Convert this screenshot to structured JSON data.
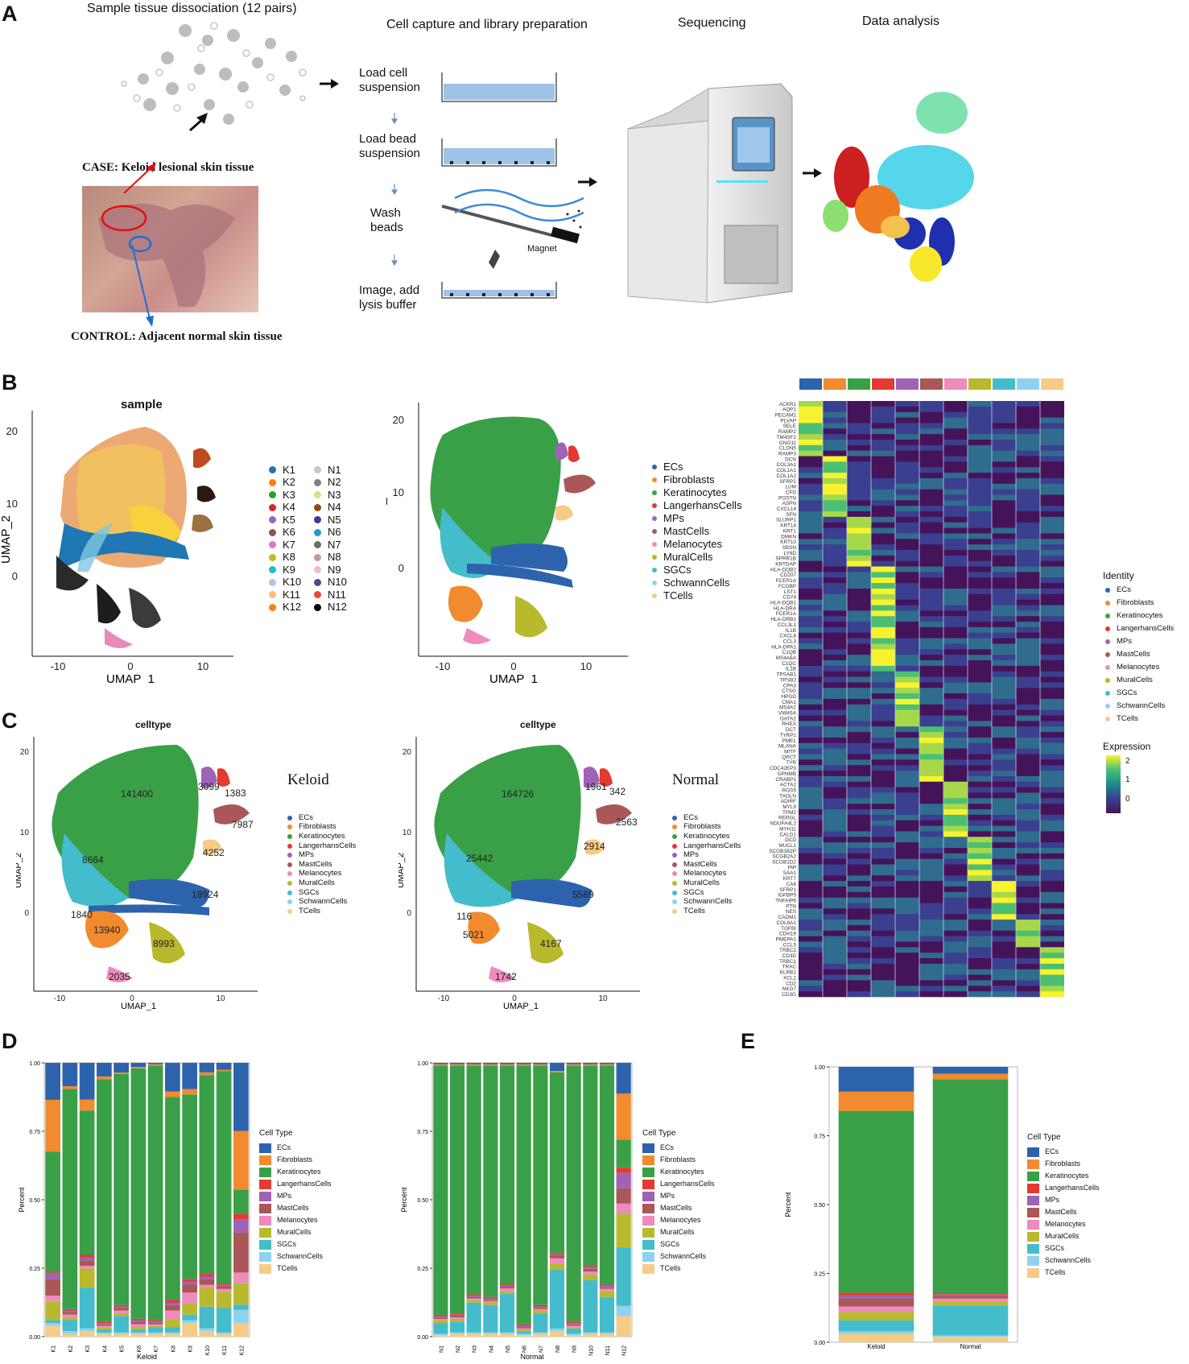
{
  "panels": {
    "a": "A",
    "b": "B",
    "c": "C",
    "d": "D",
    "e": "E"
  },
  "panel_a": {
    "step1_title": "Sample tissue dissociation (12 pairs)",
    "step2_title": "Cell capture and library preparation",
    "step3_title": "Sequencing",
    "step4_title": "Data analysis",
    "case_label": "CASE: Keloid lesional skin tissue",
    "control_label": "CONTROL: Adjacent normal skin tissue",
    "prep_steps": [
      "Load  cell suspension",
      "Load bead suspension",
      "Wash beads",
      "Image, add lysis buffer"
    ],
    "magnet_label": "Magnet"
  },
  "panel_b": {
    "plot1_title": "sample",
    "xlabel": "UMAP_1",
    "ylabel": "UMAP_2",
    "x_ticks": [
      "-10",
      "0",
      "10"
    ],
    "y_ticks": [
      "20",
      "10",
      "0"
    ],
    "sample_legend_col1": [
      "K1",
      "K2",
      "K3",
      "K4",
      "K5",
      "K6",
      "K7",
      "K8",
      "K9",
      "K10",
      "K11",
      "K12"
    ],
    "sample_legend_col2": [
      "N1",
      "N2",
      "N3",
      "N4",
      "N5",
      "N6",
      "N7",
      "N8",
      "N9",
      "N10",
      "N11",
      "N12"
    ],
    "sample_colors_k": [
      "#1f77b4",
      "#ff7f0e",
      "#2ca02c",
      "#d62728",
      "#9467bd",
      "#8c564b",
      "#e377c2",
      "#bcbd22",
      "#17becf",
      "#aec7e8",
      "#ffbb78",
      "#ff7f0e"
    ],
    "sample_colors_n": [
      "#c7c7c7",
      "#7f7f7f",
      "#dbdb8d",
      "#8c510a",
      "#3b3b9c",
      "#1f9bcf",
      "#6a6a6a",
      "#c49c94",
      "#f7b6d2",
      "#4c4c8c",
      "#e84c2c",
      "#000000"
    ],
    "celltype_legend": [
      "ECs",
      "Fibroblasts",
      "Keratinocytes",
      "LangerhansCells",
      "MPs",
      "MastCells",
      "Melanocytes",
      "MuralCells",
      "SGCs",
      "SchwannCells",
      "TCells"
    ],
    "heatmap_genes": [
      "ACKR1",
      "AQP1",
      "PECAM1",
      "PLVAP",
      "SELE",
      "RAMP2",
      "TM4SF1",
      "GNG11",
      "CLDN5",
      "RAMP3",
      "DCN",
      "COL3A1",
      "COL1A1",
      "COL1A2",
      "SFRP2",
      "LUM",
      "CFD",
      "POSTN",
      "ASPN",
      "CXCL14",
      "SFN",
      "SLURP1",
      "KRT14",
      "KRT1",
      "DMKN",
      "KRT10",
      "SBSN",
      "LY6D",
      "SPRR1B",
      "KRTDAP",
      "HLA-DQB2",
      "CD207",
      "FCER1A",
      "FCGBP",
      "LST1",
      "CD74",
      "HLA-DQB1",
      "HLA-DRA",
      "FCER1A",
      "HLA-DRB1",
      "CCL3L1",
      "IL1B",
      "CXCL8",
      "CCL3",
      "HLA-DPA1",
      "C1QB",
      "MS4A6A",
      "C1QC",
      "IL1B",
      "TPSAB1",
      "TPSB2",
      "CPA3",
      "CTSG",
      "HPGD",
      "CMA1",
      "MS4A2",
      "VWA5A",
      "GATA2",
      "RHEX",
      "DCT",
      "TYRP1",
      "PMEL",
      "MLANA",
      "MITF",
      "QPCT",
      "TYR",
      "CDC42EP3",
      "GPNMB",
      "CRABP1",
      "ACTA2",
      "RGS5",
      "TAGLN",
      "ADIRF",
      "MYL9",
      "TPM2",
      "RERGL",
      "NDUFA4L2",
      "MYH11",
      "CALD1",
      "DCD",
      "MUCL1",
      "SCGB1B2P",
      "SCGB2A2",
      "SCGB1D2",
      "PIP",
      "SAA1",
      "KRT7",
      "CA6",
      "SFRP1",
      "IGFBP5",
      "TNFAIP6",
      "PTN",
      "NES",
      "CADM1",
      "COL8A1",
      "TGFBI",
      "CDH19",
      "PMEPA1",
      "CCL5",
      "TRBC2",
      "CD3D",
      "TRBC1",
      "TRAC",
      "KLRB1",
      "XCL1",
      "CD2",
      "NKG7",
      "CD3G"
    ],
    "identity_title": "Identity",
    "expression_title": "Expression",
    "expression_ticks": [
      "2",
      "1",
      "0"
    ]
  },
  "panel_c": {
    "title": "celltype",
    "keloid_label": "Keloid",
    "normal_label": "Normal",
    "xlabel": "UMAP_1",
    "ylabel": "UMAP_2",
    "x_ticks": [
      "-10",
      "0",
      "10"
    ],
    "y_ticks": [
      "20",
      "10",
      "0"
    ],
    "keloid_counts": {
      "Keratinocytes": "141400",
      "MPs": "3099",
      "LangerhansCells": "1383",
      "MastCells": "7987",
      "MuralCells_tail": "4252",
      "SGCs": "8664",
      "ECs": "18924",
      "SchwannCells": "1840",
      "Fibroblasts": "13940",
      "MuralCells": "8993",
      "Melanocytes": "2035"
    },
    "normal_counts": {
      "Keratinocytes": "164726",
      "MPs": "1961",
      "LangerhansCells": "342",
      "MastCells": "2563",
      "MuralCells_tail": "2914",
      "SGCs": "25442",
      "ECs": "5589",
      "SchwannCells": "116",
      "Fibroblasts": "5021",
      "MuralCells": "4167",
      "Melanocytes": "1742"
    }
  },
  "chart_data": [
    {
      "type": "bar",
      "title": "Keloid",
      "xlabel": "Keloid",
      "ylabel": "Percent",
      "ylim": [
        0,
        1
      ],
      "y_ticks": [
        "1.00",
        "0.75",
        "0.50",
        "0.25",
        "0.00"
      ],
      "legend_title": "Cell Type",
      "categories": [
        "K1",
        "K2",
        "K3",
        "K4",
        "K5",
        "K6",
        "K7",
        "K8",
        "K9",
        "K10",
        "K11",
        "K12"
      ],
      "series": [
        {
          "name": "TCells",
          "values": [
            0.04,
            0.01,
            0.02,
            0.01,
            0.01,
            0.01,
            0.01,
            0.01,
            0.05,
            0.02,
            0.01,
            0.05
          ]
        },
        {
          "name": "SchwannCells",
          "values": [
            0.01,
            0.01,
            0.01,
            0.005,
            0.005,
            0.005,
            0.005,
            0.005,
            0.01,
            0.01,
            0.005,
            0.05
          ]
        },
        {
          "name": "SGCs",
          "values": [
            0.01,
            0.04,
            0.15,
            0.01,
            0.06,
            0.01,
            0.02,
            0.02,
            0.02,
            0.08,
            0.09,
            0.02
          ]
        },
        {
          "name": "MuralCells",
          "values": [
            0.07,
            0.01,
            0.07,
            0.01,
            0.01,
            0.01,
            0.005,
            0.03,
            0.04,
            0.07,
            0.06,
            0.08
          ]
        },
        {
          "name": "Melanocytes",
          "values": [
            0.02,
            0.01,
            0.01,
            0.005,
            0.01,
            0.01,
            0.005,
            0.03,
            0.04,
            0.01,
            0.01,
            0.04
          ]
        },
        {
          "name": "MastCells",
          "values": [
            0.06,
            0.01,
            0.02,
            0.005,
            0.01,
            0.01,
            0.005,
            0.02,
            0.03,
            0.02,
            0.01,
            0.15
          ]
        },
        {
          "name": "MPs",
          "values": [
            0.02,
            0.005,
            0.01,
            0.005,
            0.005,
            0.005,
            0.005,
            0.01,
            0.01,
            0.01,
            0.005,
            0.05
          ]
        },
        {
          "name": "LangerhansCells",
          "values": [
            0.005,
            0.005,
            0.01,
            0.005,
            0.005,
            0.005,
            0.005,
            0.01,
            0.01,
            0.01,
            0.005,
            0.02
          ]
        },
        {
          "name": "Keratinocytes",
          "values": [
            0.44,
            0.8,
            0.53,
            0.89,
            0.84,
            0.91,
            0.93,
            0.74,
            0.67,
            0.73,
            0.78,
            0.09
          ]
        },
        {
          "name": "Fibroblasts",
          "values": [
            0.19,
            0.01,
            0.04,
            0.01,
            0.005,
            0.005,
            0.005,
            0.02,
            0.02,
            0.01,
            0.005,
            0.22
          ]
        },
        {
          "name": "ECs",
          "values": [
            0.135,
            0.085,
            0.135,
            0.05,
            0.035,
            0.015,
            0.005,
            0.105,
            0.095,
            0.035,
            0.025,
            0.255
          ]
        }
      ]
    },
    {
      "type": "bar",
      "title": "Normal",
      "xlabel": "Normal",
      "ylabel": "Percent",
      "ylim": [
        0,
        1
      ],
      "y_ticks": [
        "1.00",
        "0.75",
        "0.50",
        "0.25",
        "0.00"
      ],
      "legend_title": "Cell Type",
      "categories": [
        "N1",
        "N2",
        "N3",
        "N4",
        "N5",
        "N6",
        "N7",
        "N8",
        "N9",
        "N10",
        "N11",
        "N12"
      ],
      "series": [
        {
          "name": "TCells",
          "values": [
            0.005,
            0.01,
            0.01,
            0.01,
            0.01,
            0.005,
            0.01,
            0.02,
            0.005,
            0.01,
            0.01,
            0.08
          ]
        },
        {
          "name": "SchwannCells",
          "values": [
            0.005,
            0.005,
            0.005,
            0.005,
            0.005,
            0.005,
            0.005,
            0.01,
            0.005,
            0.005,
            0.005,
            0.04
          ]
        },
        {
          "name": "SGCs",
          "values": [
            0.04,
            0.04,
            0.11,
            0.1,
            0.14,
            0.01,
            0.07,
            0.22,
            0.02,
            0.19,
            0.13,
            0.23
          ]
        },
        {
          "name": "MuralCells",
          "values": [
            0.01,
            0.01,
            0.01,
            0.01,
            0.01,
            0.005,
            0.01,
            0.02,
            0.005,
            0.02,
            0.02,
            0.13
          ]
        },
        {
          "name": "Melanocytes",
          "values": [
            0.005,
            0.005,
            0.005,
            0.005,
            0.01,
            0.005,
            0.005,
            0.02,
            0.005,
            0.01,
            0.01,
            0.04
          ]
        },
        {
          "name": "MastCells",
          "values": [
            0.005,
            0.005,
            0.005,
            0.005,
            0.005,
            0.005,
            0.005,
            0.01,
            0.005,
            0.01,
            0.005,
            0.06
          ]
        },
        {
          "name": "MPs",
          "values": [
            0.005,
            0.005,
            0.005,
            0.005,
            0.005,
            0.005,
            0.005,
            0.005,
            0.005,
            0.005,
            0.005,
            0.06
          ]
        },
        {
          "name": "LangerhansCells",
          "values": [
            0.005,
            0.005,
            0.005,
            0.005,
            0.005,
            0.005,
            0.005,
            0.005,
            0.005,
            0.005,
            0.005,
            0.02
          ]
        },
        {
          "name": "Keratinocytes",
          "values": [
            0.915,
            0.905,
            0.84,
            0.845,
            0.795,
            0.945,
            0.87,
            0.67,
            0.94,
            0.725,
            0.8,
            0.11
          ]
        },
        {
          "name": "Fibroblasts",
          "values": [
            0.005,
            0.005,
            0.005,
            0.005,
            0.005,
            0.005,
            0.005,
            0.005,
            0.005,
            0.005,
            0.005,
            0.18
          ]
        },
        {
          "name": "ECs",
          "values": [
            0.005,
            0.005,
            0.005,
            0.005,
            0.005,
            0.005,
            0.005,
            0.03,
            0.005,
            0.005,
            0.005,
            0.12
          ]
        }
      ]
    },
    {
      "type": "bar",
      "title": "E",
      "xlabel": "",
      "ylabel": "Percent",
      "ylim": [
        0,
        1
      ],
      "y_ticks": [
        "1.00",
        "0.75",
        "0.50",
        "0.25",
        "0.00"
      ],
      "legend_title": "Cell Type",
      "categories": [
        "Keloid",
        "Normal"
      ],
      "series": [
        {
          "name": "TCells",
          "values": [
            0.03,
            0.02
          ]
        },
        {
          "name": "SchwannCells",
          "values": [
            0.01,
            0.005
          ]
        },
        {
          "name": "SGCs",
          "values": [
            0.04,
            0.11
          ]
        },
        {
          "name": "MuralCells",
          "values": [
            0.03,
            0.015
          ]
        },
        {
          "name": "Melanocytes",
          "values": [
            0.02,
            0.01
          ]
        },
        {
          "name": "MastCells",
          "values": [
            0.03,
            0.01
          ]
        },
        {
          "name": "MPs",
          "values": [
            0.01,
            0.005
          ]
        },
        {
          "name": "LangerhansCells",
          "values": [
            0.01,
            0.005
          ]
        },
        {
          "name": "Keratinocytes",
          "values": [
            0.66,
            0.785
          ]
        },
        {
          "name": "Fibroblasts",
          "values": [
            0.07,
            0.02
          ]
        },
        {
          "name": "ECs",
          "values": [
            0.09,
            0.025
          ]
        }
      ]
    }
  ],
  "celltype_colors": {
    "ECs": "#2c63ac",
    "Fibroblasts": "#f28a2e",
    "Keratinocytes": "#3aa047",
    "LangerhansCells": "#e43a2f",
    "MPs": "#9f63b5",
    "MastCells": "#a95857",
    "Melanocytes": "#ee8bbd",
    "MuralCells": "#b9b92d",
    "SGCs": "#45bccc",
    "SchwannCells": "#8fd2ef",
    "TCells": "#f6cb86"
  }
}
